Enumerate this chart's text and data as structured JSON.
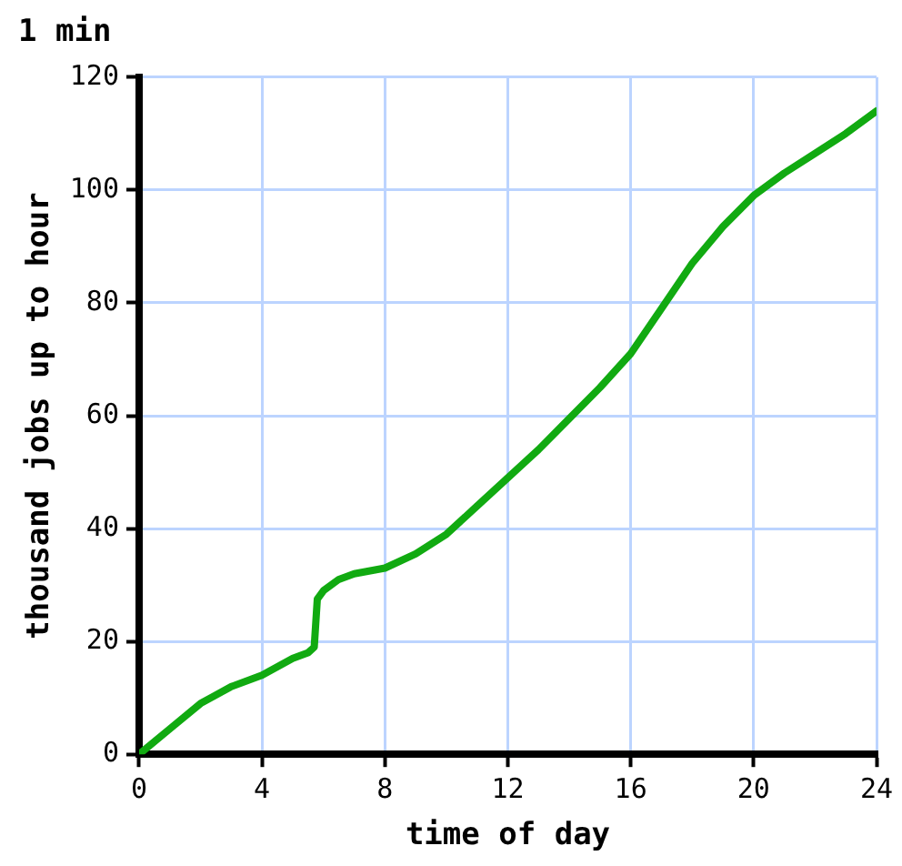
{
  "chart_data": {
    "type": "line",
    "title": "1 min",
    "xlabel": "time of day",
    "ylabel": "thousand jobs up to hour",
    "x": [
      0,
      1,
      2,
      3,
      4,
      5,
      5.5,
      5.7,
      5.8,
      6,
      6.5,
      7,
      8,
      9,
      10,
      11,
      12,
      13,
      14,
      15,
      16,
      17,
      18,
      19,
      20,
      21,
      22,
      23,
      24
    ],
    "series": [
      {
        "color": "#11aa11",
        "values": [
          0,
          4.5,
          9,
          12,
          14,
          17,
          18,
          19,
          27.5,
          29,
          31,
          32,
          33,
          35.5,
          39,
          44,
          49,
          54,
          59.5,
          65,
          71,
          79,
          87,
          93.5,
          99,
          103,
          106.5,
          110,
          114
        ]
      }
    ],
    "xlim": [
      0,
      24
    ],
    "xticks": [
      0,
      4,
      8,
      12,
      16,
      20,
      24
    ],
    "ylim": [
      0,
      120
    ],
    "yticks": [
      0,
      20,
      40,
      60,
      80,
      100,
      120
    ],
    "grid": true,
    "legend": false,
    "marker": "none",
    "line_style": "solid"
  }
}
